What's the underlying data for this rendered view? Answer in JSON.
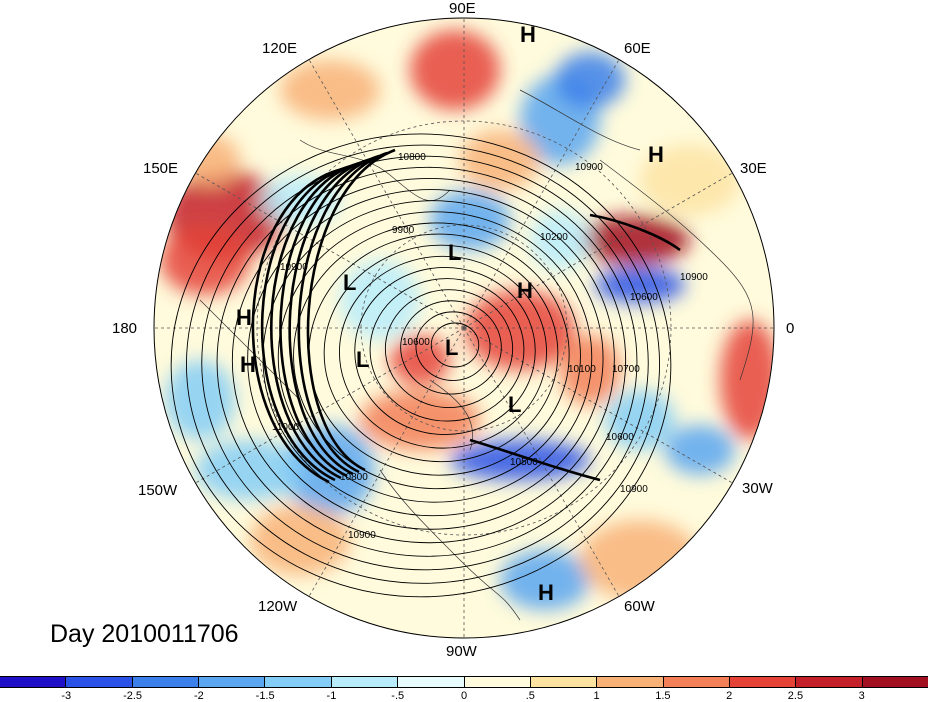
{
  "title": "Day 2010011706",
  "longitude_labels": [
    "90E",
    "60E",
    "30E",
    "0",
    "30W",
    "60W",
    "90W",
    "120W",
    "150W",
    "180",
    "150E",
    "120E"
  ],
  "contour_labels": [
    "10800",
    "9900",
    "10200",
    "10900",
    "10100",
    "10700",
    "10600",
    "10500",
    "10900",
    "11000",
    "10900",
    "10800",
    "10900",
    "10900",
    "10600",
    "10600"
  ],
  "pressure_centers": [
    {
      "label": "H"
    },
    {
      "label": "H"
    },
    {
      "label": "H"
    },
    {
      "label": "H"
    },
    {
      "label": "H"
    },
    {
      "label": "H"
    },
    {
      "label": "L"
    },
    {
      "label": "L"
    },
    {
      "label": "L"
    },
    {
      "label": "L"
    },
    {
      "label": "L"
    }
  ],
  "colorbar": {
    "ticks": [
      "-3",
      "-2.5",
      "-2",
      "-1.5",
      "-1",
      "-.5",
      "0",
      ".5",
      "1",
      "1.5",
      "2",
      "2.5",
      "3"
    ],
    "colors": [
      "#1f10c8",
      "#2a52e6",
      "#3a7fea",
      "#5aa6f0",
      "#84cdf6",
      "#b8ecfb",
      "#e8fcfd",
      "#fffbdc",
      "#fde3a2",
      "#f8b278",
      "#f27f58",
      "#e54238",
      "#c4202a",
      "#a10f20"
    ]
  }
}
